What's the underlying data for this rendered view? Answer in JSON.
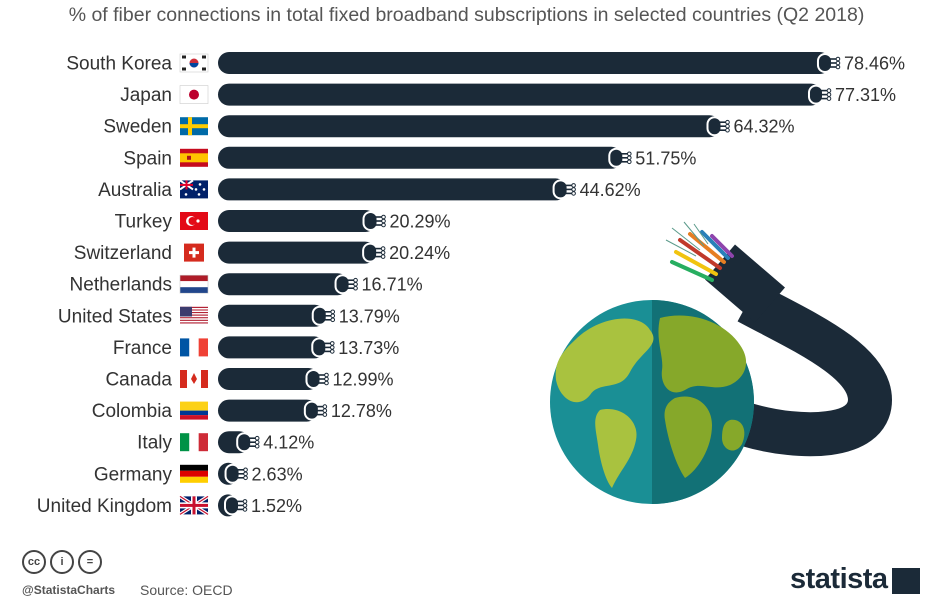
{
  "chart_data": {
    "type": "bar",
    "title": "% of fiber connections in total fixed broadband subscriptions in selected countries (Q2 2018)",
    "categories": [
      "South Korea",
      "Japan",
      "Sweden",
      "Spain",
      "Australia",
      "Turkey",
      "Switzerland",
      "Netherlands",
      "United States",
      "France",
      "Canada",
      "Colombia",
      "Italy",
      "Germany",
      "United Kingdom"
    ],
    "values": [
      78.46,
      77.31,
      64.32,
      51.75,
      44.62,
      20.29,
      20.24,
      16.71,
      13.79,
      13.73,
      12.99,
      12.78,
      4.12,
      2.63,
      1.52
    ],
    "value_labels": [
      "78.46%",
      "77.31%",
      "64.32%",
      "51.75%",
      "44.62%",
      "20.29%",
      "20.24%",
      "16.71%",
      "13.79%",
      "13.73%",
      "12.99%",
      "12.78%",
      "4.12%",
      "2.63%",
      "1.52%"
    ],
    "flag_icons": [
      "flag-south-korea-icon",
      "flag-japan-icon",
      "flag-sweden-icon",
      "flag-spain-icon",
      "flag-australia-icon",
      "flag-turkey-icon",
      "flag-switzerland-icon",
      "flag-netherlands-icon",
      "flag-united-states-icon",
      "flag-france-icon",
      "flag-canada-icon",
      "flag-colombia-icon",
      "flag-italy-icon",
      "flag-germany-icon",
      "flag-united-kingdom-icon"
    ],
    "xlim": [
      0,
      80
    ],
    "grid": false,
    "bar_color": "#1b2a38",
    "illustration": "globe-with-fiber-cable-icon"
  },
  "footer": {
    "handle": "@StatistaCharts",
    "source": "Source: OECD",
    "brand": "statista",
    "license_icons": [
      "cc-icon",
      "by-icon",
      "nd-icon"
    ]
  }
}
